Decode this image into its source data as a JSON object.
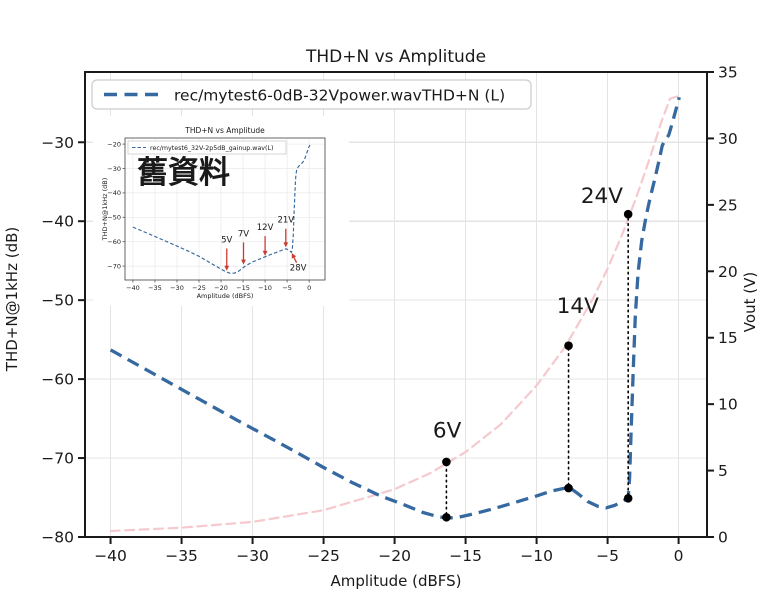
{
  "figure": {
    "background": "#ffffff",
    "colors": {
      "thd_line": "#35699f",
      "vout_line": "#f5c9ce",
      "annotation_text": "#bf3b30",
      "arrow_red": "#cc3b32",
      "grid": "#e4e4e4",
      "spine": "#1a1a1a",
      "dot": "#000000",
      "legend_border": "#cccccc",
      "inset_spine": "#555555",
      "inset_grid": "#e9e9e9"
    }
  },
  "chart_data": [
    {
      "id": "main",
      "type": "line",
      "title": "THD+N vs Amplitude",
      "xlabel": "Amplitude (dBFS)",
      "ylabel": "THD+N@1kHz (dB)",
      "y2label": "Vout (V)",
      "xlim": [
        -41.8,
        2.0
      ],
      "ylim": [
        -80,
        -21.1
      ],
      "y2lim": [
        0,
        35
      ],
      "xticks": [
        -40,
        -35,
        -30,
        -25,
        -20,
        -15,
        -10,
        -5,
        0
      ],
      "yticks": [
        -30,
        -40,
        -50,
        -60,
        -70,
        -80
      ],
      "y2ticks": [
        0,
        5,
        10,
        15,
        20,
        25,
        30,
        35
      ],
      "grid": true,
      "legend_position": "upper left",
      "legend_entries": [
        "rec/mytest6-0dB-32Vpower.wavTHD+N (L)"
      ],
      "series": [
        {
          "name": "rec/mytest6-0dB-32Vpower.wavTHD+N (L)",
          "axis": "left",
          "style": "dashed",
          "points": [
            [
              -40,
              -56.3
            ],
            [
              -37,
              -59.3
            ],
            [
              -34,
              -62.3
            ],
            [
              -31,
              -65.3
            ],
            [
              -28,
              -68.2
            ],
            [
              -25,
              -71.2
            ],
            [
              -23,
              -73.1
            ],
            [
              -21,
              -74.8
            ],
            [
              -19.5,
              -75.8
            ],
            [
              -18,
              -76.9
            ],
            [
              -17,
              -77.4
            ],
            [
              -16.3,
              -77.6
            ],
            [
              -15.5,
              -77.5
            ],
            [
              -14.5,
              -77.1
            ],
            [
              -13,
              -76.4
            ],
            [
              -11.5,
              -75.6
            ],
            [
              -10,
              -74.8
            ],
            [
              -9,
              -74.2
            ],
            [
              -8.2,
              -73.9
            ],
            [
              -7.7,
              -73.7
            ],
            [
              -7.1,
              -74.5
            ],
            [
              -6.4,
              -75.5
            ],
            [
              -5.7,
              -76.1
            ],
            [
              -5.1,
              -76.3
            ],
            [
              -4.5,
              -76.0
            ],
            [
              -3.9,
              -75.4
            ],
            [
              -3.55,
              -75.1
            ],
            [
              -3.45,
              -72.5
            ],
            [
              -3.35,
              -67
            ],
            [
              -3.2,
              -59
            ],
            [
              -3.05,
              -52
            ],
            [
              -2.85,
              -46.5
            ],
            [
              -2.6,
              -42.5
            ],
            [
              -2.3,
              -39.5
            ],
            [
              -2.0,
              -37
            ],
            [
              -1.7,
              -34.8
            ],
            [
              -1.4,
              -32.5
            ],
            [
              -1.15,
              -30.4
            ],
            [
              -0.9,
              -29.6
            ],
            [
              -0.7,
              -29.1
            ],
            [
              -0.5,
              -27.9
            ],
            [
              -0.25,
              -26.3
            ],
            [
              0.05,
              -24.3
            ]
          ]
        },
        {
          "name": "Vout",
          "axis": "right",
          "style": "dashed",
          "points": [
            [
              -40,
              0.45
            ],
            [
              -35,
              0.7
            ],
            [
              -30,
              1.14
            ],
            [
              -25,
              2.02
            ],
            [
              -20,
              3.6
            ],
            [
              -17.5,
              4.8
            ],
            [
              -15,
              6.4
            ],
            [
              -12.5,
              8.5
            ],
            [
              -10,
              11.4
            ],
            [
              -8,
              14.3
            ],
            [
              -6,
              18.0
            ],
            [
              -5,
              20.2
            ],
            [
              -4,
              22.7
            ],
            [
              -3,
              25.5
            ],
            [
              -2,
              28.6
            ],
            [
              -1.2,
              31.3
            ],
            [
              -0.6,
              33.0
            ],
            [
              0.05,
              33.2
            ]
          ]
        }
      ],
      "annotations": [
        {
          "label": "6V",
          "x": -16.35,
          "vout": 5.65,
          "thd": -77.5,
          "label_at": [
            -16.3,
            -67.4
          ]
        },
        {
          "label": "14V",
          "x": -7.75,
          "vout": 14.4,
          "thd": -73.8,
          "label_at": [
            -7.1,
            -51.6
          ]
        },
        {
          "label": "24V",
          "x": -3.55,
          "vout": 24.3,
          "thd": -75.1,
          "label_at": [
            -5.4,
            -37.7
          ]
        }
      ]
    },
    {
      "id": "inset",
      "type": "line",
      "title": "THD+N vs Amplitude",
      "xlabel": "Amplitude (dBFS)",
      "ylabel": "THD+N@1kHz (dB)",
      "note": "舊資料",
      "xlim": [
        -41.8,
        3.6
      ],
      "ylim": [
        -75.7,
        -17.5
      ],
      "xticks": [
        -40,
        -35,
        -30,
        -25,
        -20,
        -15,
        -10,
        -5,
        0
      ],
      "yticks": [
        -20,
        -30,
        -40,
        -50,
        -60,
        -70
      ],
      "grid": true,
      "legend_position": "upper left",
      "legend_entries": [
        "rec/mytest6_32V-2p5dB_gainup.wav(L)"
      ],
      "series": [
        {
          "name": "rec/mytest6_32V-2p5dB_gainup.wav(L)",
          "axis": "left",
          "style": "dashed",
          "points": [
            [
              -40,
              -54
            ],
            [
              -36,
              -57.1
            ],
            [
              -32,
              -60.2
            ],
            [
              -28,
              -63.4
            ],
            [
              -25,
              -66
            ],
            [
              -22.5,
              -68.6
            ],
            [
              -20.5,
              -70.7
            ],
            [
              -19,
              -72.2
            ],
            [
              -18,
              -72.9
            ],
            [
              -17,
              -72.9
            ],
            [
              -16,
              -72.1
            ],
            [
              -14.5,
              -70
            ],
            [
              -13,
              -68.4
            ],
            [
              -11.5,
              -67.3
            ],
            [
              -10,
              -66.2
            ],
            [
              -8.5,
              -65.1
            ],
            [
              -7,
              -64.1
            ],
            [
              -5.8,
              -63.2
            ],
            [
              -5.2,
              -62.9
            ],
            [
              -4.6,
              -63.5
            ],
            [
              -4.0,
              -64.4
            ],
            [
              -3.8,
              -62.5
            ],
            [
              -3.6,
              -57
            ],
            [
              -3.45,
              -50
            ],
            [
              -3.3,
              -43
            ],
            [
              -3.15,
              -36.5
            ],
            [
              -3.0,
              -32.5
            ],
            [
              -2.8,
              -30.3
            ],
            [
              -2.5,
              -29.4
            ],
            [
              -2.0,
              -28.4
            ],
            [
              -1.5,
              -27.6
            ],
            [
              -1.1,
              -26.5
            ],
            [
              -0.6,
              -24
            ],
            [
              -0.1,
              -21.3
            ],
            [
              0.2,
              -20.4
            ]
          ]
        }
      ],
      "arrows": [
        {
          "label": "5V",
          "from": [
            -18.7,
            -62.8
          ],
          "to": [
            -18.7,
            -71.3
          ],
          "label_at": [
            -18.7,
            -60.3
          ]
        },
        {
          "label": "7V",
          "from": [
            -14.9,
            -60.3
          ],
          "to": [
            -14.9,
            -68.8
          ],
          "label_at": [
            -14.9,
            -57.8
          ]
        },
        {
          "label": "12V",
          "from": [
            -10.0,
            -57.7
          ],
          "to": [
            -10.0,
            -65.2
          ],
          "label_at": [
            -10.0,
            -55.2
          ]
        },
        {
          "label": "21V",
          "from": [
            -5.3,
            -54.7
          ],
          "to": [
            -5.3,
            -61.7
          ],
          "label_at": [
            -5.3,
            -52.2
          ]
        },
        {
          "label": "28V",
          "from": [
            -2.85,
            -68.6
          ],
          "to": [
            -3.8,
            -65.2
          ],
          "label_at": [
            -2.5,
            -71.8
          ]
        }
      ]
    }
  ]
}
